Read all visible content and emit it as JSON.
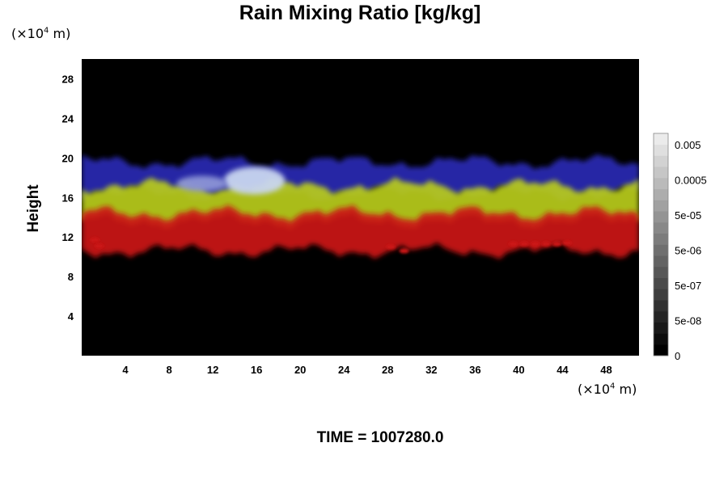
{
  "chart_data": {
    "type": "heatmap",
    "title": "Rain Mixing Ratio [kg/kg]",
    "ylabel": "Height",
    "xlabel": "",
    "x_unit": {
      "prefix": "(×10",
      "exp": "4",
      "suffix": " m)"
    },
    "y_unit": {
      "prefix": "(×10",
      "exp": "4",
      "suffix": " m)"
    },
    "xlim": [
      0,
      51
    ],
    "ylim": [
      0,
      30
    ],
    "x_ticks": [
      "4",
      "8",
      "12",
      "16",
      "20",
      "24",
      "28",
      "32",
      "36",
      "40",
      "44",
      "48"
    ],
    "y_ticks": [
      "4",
      "8",
      "12",
      "16",
      "20",
      "24",
      "28"
    ],
    "colorbar": {
      "labels": [
        "0.005",
        "0.0005",
        "5e-05",
        "5e-06",
        "5e-07",
        "5e-08",
        "0"
      ],
      "levels": 20
    },
    "footer": "TIME = 1007280.0",
    "layers": [
      {
        "name": "upper-band",
        "color": "#2a2ab4",
        "y_top": 19.6,
        "y_bottom": 16.4
      },
      {
        "name": "middle-band",
        "color": "#b9cc1a",
        "y_top": 17.2,
        "y_bottom": 13.6
      },
      {
        "name": "lower-band",
        "color": "#cc1212",
        "y_top": 14.4,
        "y_bottom": 10.6
      }
    ],
    "bright_spots": [
      {
        "x": 15.8,
        "y": 17.7,
        "rx": 2.8,
        "ry": 1.4,
        "color": "#c9d6f0"
      },
      {
        "x": 11.0,
        "y": 17.4,
        "rx": 2.3,
        "ry": 0.8,
        "color": "#8c94d6"
      }
    ]
  }
}
